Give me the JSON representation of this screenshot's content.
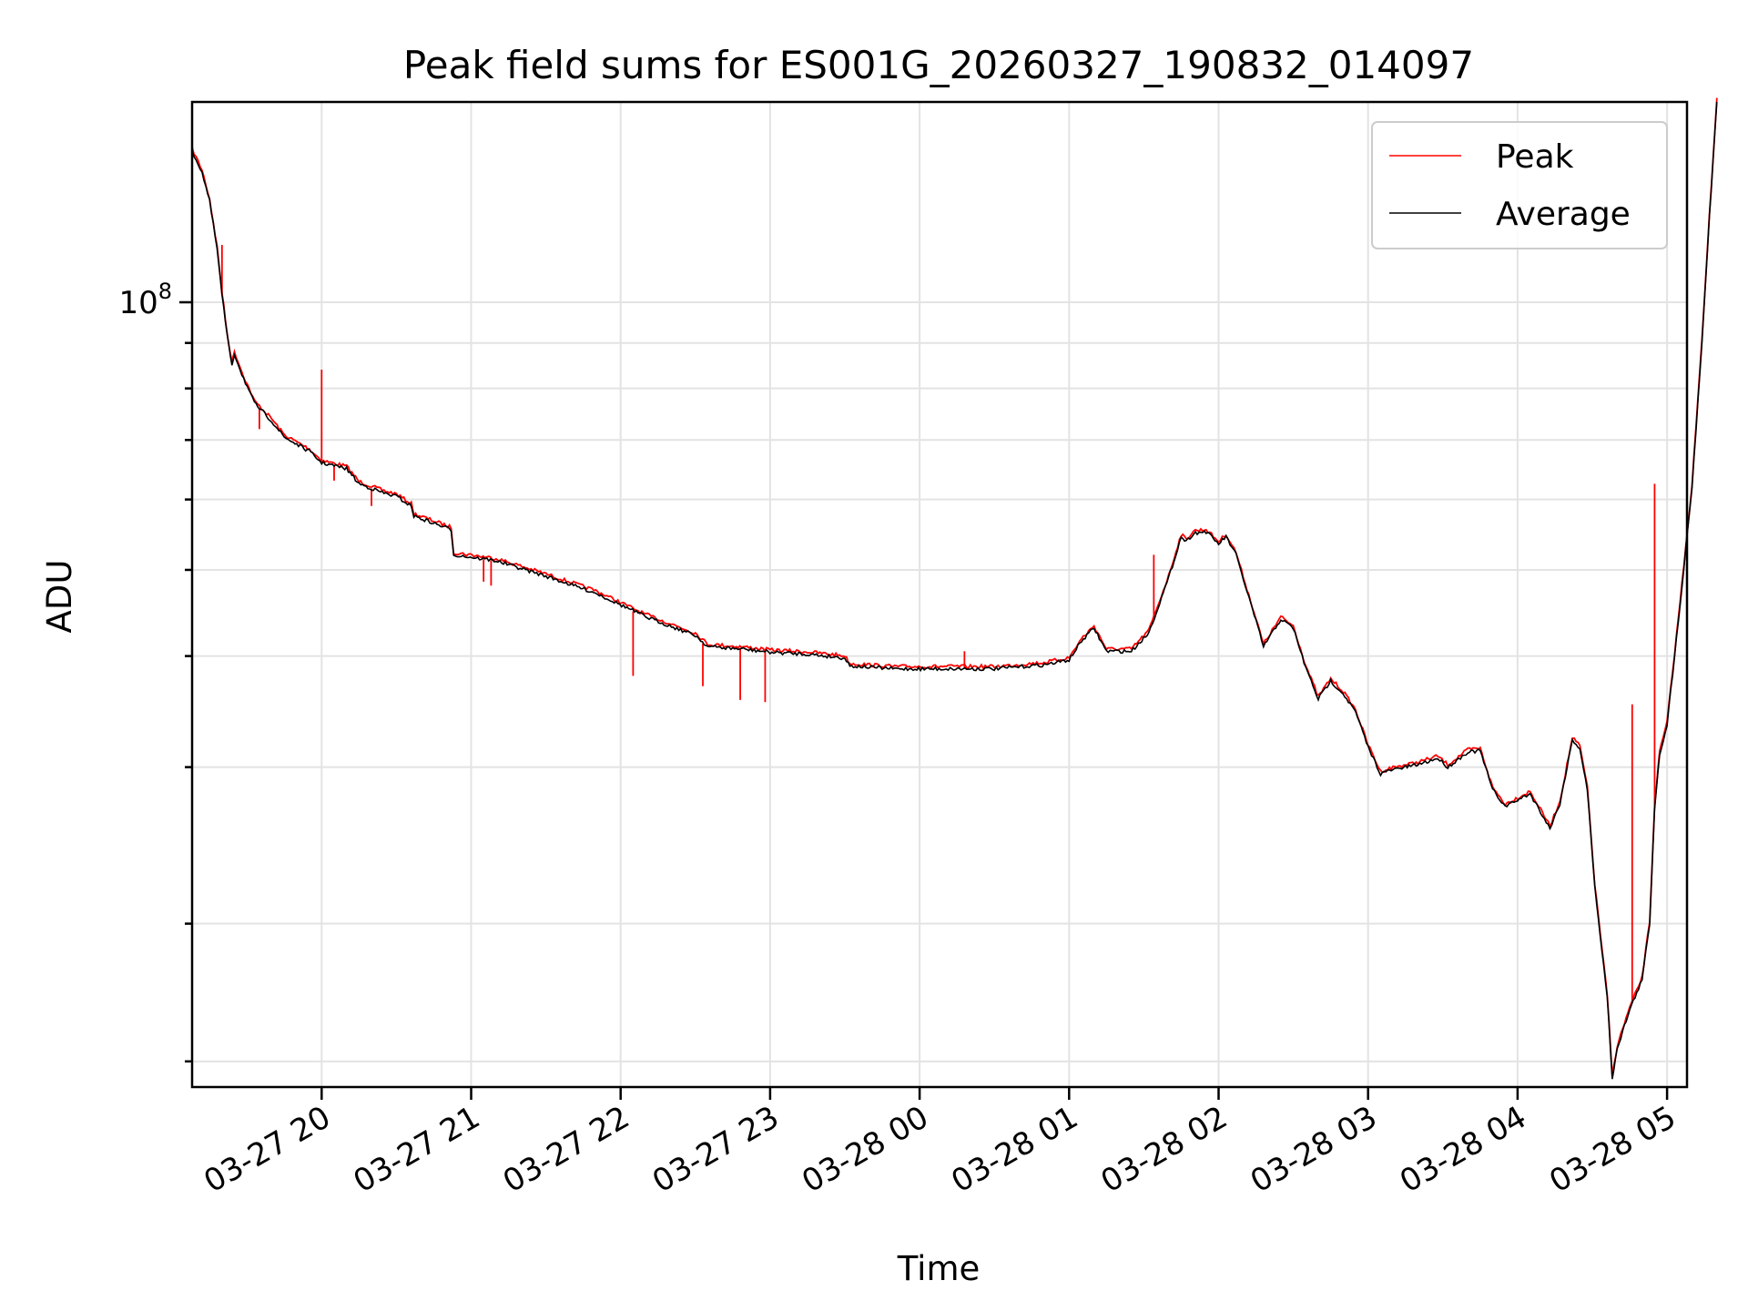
{
  "chart_data": {
    "type": "line",
    "title": "Peak field sums for ES001G_20260327_190832_014097",
    "xlabel": "Time",
    "ylabel": "ADU",
    "yscale": "log",
    "xlim": [
      "03-27 19:08",
      "03-28 05:08"
    ],
    "ylim": [
      13100000,
      168000000
    ],
    "grid": true,
    "legend_position": "upper-right",
    "x_ticks": [
      "03-27 20",
      "03-27 21",
      "03-27 22",
      "03-27 23",
      "03-28 00",
      "03-28 01",
      "03-28 02",
      "03-28 03",
      "03-28 04",
      "03-28 05"
    ],
    "x_tick_rotation": -30,
    "y_major_ticks": [
      {
        "value": 100000000,
        "base": "10",
        "exp": "8"
      }
    ],
    "y_minor_ticks": [
      14000000,
      20000000,
      30000000,
      40000000,
      50000000,
      60000000,
      70000000,
      80000000,
      90000000
    ],
    "series": [
      {
        "name": "Peak",
        "color": "#ff0000",
        "spikes": [
          [
            "03-27 19:20",
            116000000
          ],
          [
            "03-27 19:35",
            72000000
          ],
          [
            "03-27 20:00",
            84000000
          ],
          [
            "03-27 20:05",
            63000000
          ],
          [
            "03-27 20:20",
            59000000
          ],
          [
            "03-27 21:05",
            48500000
          ],
          [
            "03-27 21:08",
            48000000
          ],
          [
            "03-27 21:50",
            47000000
          ],
          [
            "03-27 22:05",
            38000000
          ],
          [
            "03-27 22:33",
            37000000
          ],
          [
            "03-27 22:48",
            35700000
          ],
          [
            "03-27 22:58",
            35500000
          ],
          [
            "03-28 00:18",
            40500000
          ],
          [
            "03-28 01:34",
            52000000
          ],
          [
            "03-28 04:46",
            35300000
          ],
          [
            "03-28 04:55",
            62500000
          ]
        ]
      },
      {
        "name": "Average",
        "color": "#000000",
        "points": [
          [
            "03-27 19:08",
            148000000
          ],
          [
            "03-27 19:12",
            140000000
          ],
          [
            "03-27 19:15",
            130000000
          ],
          [
            "03-27 19:18",
            115000000
          ],
          [
            "03-27 19:20",
            102000000
          ],
          [
            "03-27 19:22",
            92000000
          ],
          [
            "03-27 19:24",
            85000000
          ],
          [
            "03-27 19:25",
            87500000
          ],
          [
            "03-27 19:28",
            83000000
          ],
          [
            "03-27 19:33",
            77000000
          ],
          [
            "03-27 19:40",
            73500000
          ],
          [
            "03-27 19:45",
            70500000
          ],
          [
            "03-27 19:55",
            68000000
          ],
          [
            "03-27 20:00",
            66000000
          ],
          [
            "03-27 20:10",
            65000000
          ],
          [
            "03-27 20:15",
            62500000
          ],
          [
            "03-27 20:25",
            61000000
          ],
          [
            "03-27 20:30",
            60500000
          ],
          [
            "03-27 20:36",
            59000000
          ],
          [
            "03-27 20:37",
            57500000
          ],
          [
            "03-27 20:52",
            55500000
          ],
          [
            "03-27 20:53",
            52000000
          ],
          [
            "03-27 21:10",
            51200000
          ],
          [
            "03-27 21:30",
            49200000
          ],
          [
            "03-27 21:50",
            47100000
          ],
          [
            "03-27 22:10",
            44300000
          ],
          [
            "03-27 22:30",
            42200000
          ],
          [
            "03-27 22:35",
            41000000
          ],
          [
            "03-27 22:50",
            40700000
          ],
          [
            "03-27 23:00",
            40400000
          ],
          [
            "03-27 23:15",
            40200000
          ],
          [
            "03-27 23:30",
            39800000
          ],
          [
            "03-27 23:32",
            39000000
          ],
          [
            "03-27 23:50",
            38700000
          ],
          [
            "03-28 00:10",
            38700000
          ],
          [
            "03-28 00:30",
            38700000
          ],
          [
            "03-28 00:50",
            39100000
          ],
          [
            "03-28 01:00",
            39600000
          ],
          [
            "03-28 01:05",
            41600000
          ],
          [
            "03-28 01:10",
            43000000
          ],
          [
            "03-28 01:15",
            40500000
          ],
          [
            "03-28 01:25",
            40500000
          ],
          [
            "03-28 01:32",
            42500000
          ],
          [
            "03-28 01:40",
            49000000
          ],
          [
            "03-28 01:45",
            54500000
          ],
          [
            "03-28 01:47",
            53800000
          ],
          [
            "03-28 01:50",
            55000000
          ],
          [
            "03-28 01:55",
            55200000
          ],
          [
            "03-28 02:00",
            53500000
          ],
          [
            "03-28 02:03",
            54500000
          ],
          [
            "03-28 02:07",
            52000000
          ],
          [
            "03-28 02:15",
            43800000
          ],
          [
            "03-28 02:18",
            41000000
          ],
          [
            "03-28 02:25",
            44000000
          ],
          [
            "03-28 02:30",
            43000000
          ],
          [
            "03-28 02:35",
            38800000
          ],
          [
            "03-28 02:40",
            35800000
          ],
          [
            "03-28 02:45",
            37500000
          ],
          [
            "03-28 02:50",
            36300000
          ],
          [
            "03-28 02:55",
            34600000
          ],
          [
            "03-28 03:00",
            31600000
          ],
          [
            "03-28 03:05",
            29500000
          ],
          [
            "03-28 03:10",
            29800000
          ],
          [
            "03-28 03:20",
            30200000
          ],
          [
            "03-28 03:28",
            30700000
          ],
          [
            "03-28 03:32",
            30000000
          ],
          [
            "03-28 03:40",
            31200000
          ],
          [
            "03-28 03:45",
            31300000
          ],
          [
            "03-28 03:50",
            28300000
          ],
          [
            "03-28 03:55",
            27100000
          ],
          [
            "03-28 04:05",
            28000000
          ],
          [
            "03-28 04:10",
            26500000
          ],
          [
            "03-28 04:13",
            25600000
          ],
          [
            "03-28 04:17",
            27300000
          ],
          [
            "03-28 04:22",
            32200000
          ],
          [
            "03-28 04:25",
            31500000
          ],
          [
            "03-28 04:28",
            28300000
          ],
          [
            "03-28 04:31",
            22000000
          ],
          [
            "03-28 04:36",
            16500000
          ],
          [
            "03-28 04:38",
            13400000
          ],
          [
            "03-28 04:40",
            14500000
          ],
          [
            "03-28 04:45",
            16000000
          ],
          [
            "03-28 04:50",
            17300000
          ],
          [
            "03-28 04:53",
            20000000
          ],
          [
            "03-28 04:55",
            27000000
          ],
          [
            "03-28 04:57",
            31000000
          ],
          [
            "03-28 05:00",
            33500000
          ],
          [
            "03-28 05:03",
            40000000
          ],
          [
            "03-28 05:06",
            48000000
          ],
          [
            "03-28 05:10",
            62000000
          ],
          [
            "03-28 05:14",
            90000000
          ],
          [
            "03-28 05:17",
            125000000
          ],
          [
            "03-28 05:20",
            168000000
          ]
        ]
      }
    ]
  }
}
